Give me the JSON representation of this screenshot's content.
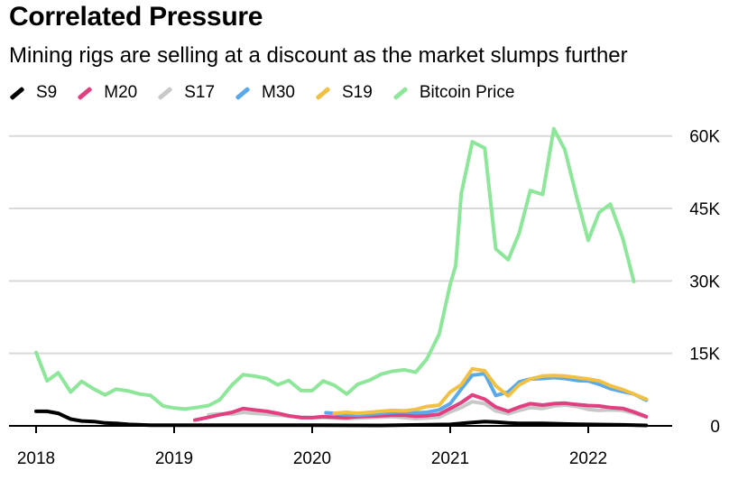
{
  "title": "Correlated Pressure",
  "subtitle": "Mining rigs are selling at a discount as the market slumps further",
  "legend": [
    {
      "label": "S9",
      "color": "#000000",
      "icon": "line-swatch"
    },
    {
      "label": "M20",
      "color": "#e0407f",
      "icon": "line-swatch"
    },
    {
      "label": "S17",
      "color": "#c8c8c8",
      "icon": "line-swatch"
    },
    {
      "label": "M30",
      "color": "#5aa9ea",
      "icon": "line-swatch"
    },
    {
      "label": "S19",
      "color": "#f2c042",
      "icon": "line-swatch"
    },
    {
      "label": "Bitcoin Price",
      "color": "#8ee69a",
      "icon": "line-swatch"
    }
  ],
  "chart_data": {
    "type": "line",
    "title": "Correlated Pressure",
    "subtitle": "Mining rigs are selling at a discount as the market slumps further",
    "xlabel": "",
    "ylabel": "",
    "x_unit": "year (decimal)",
    "xlim": [
      2017.85,
      2022.6
    ],
    "ylim": [
      0,
      62000
    ],
    "x_ticks": [
      2018,
      2019,
      2020,
      2021,
      2022
    ],
    "x_tick_labels": [
      "2018",
      "2019",
      "2020",
      "2021",
      "2022"
    ],
    "y_ticks": [
      0,
      15000,
      30000,
      45000,
      60000
    ],
    "y_tick_labels": [
      "0",
      "15K",
      "30K",
      "45K",
      "60K"
    ],
    "y_axis_position": "right",
    "grid": "horizontal",
    "legend_position": "top-left",
    "series": [
      {
        "name": "Bitcoin Price",
        "color": "#8ee69a",
        "x": [
          2018.0,
          2018.08,
          2018.16,
          2018.25,
          2018.33,
          2018.42,
          2018.5,
          2018.58,
          2018.67,
          2018.75,
          2018.83,
          2018.92,
          2019.0,
          2019.08,
          2019.16,
          2019.25,
          2019.33,
          2019.42,
          2019.5,
          2019.58,
          2019.67,
          2019.75,
          2019.83,
          2019.92,
          2020.0,
          2020.08,
          2020.16,
          2020.25,
          2020.33,
          2020.42,
          2020.5,
          2020.58,
          2020.67,
          2020.75,
          2020.83,
          2020.92,
          2021.0,
          2021.04,
          2021.08,
          2021.16,
          2021.25,
          2021.33,
          2021.42,
          2021.5,
          2021.58,
          2021.67,
          2021.75,
          2021.83,
          2021.92,
          2022.0,
          2022.08,
          2022.16,
          2022.25,
          2022.33,
          2022.42
        ],
        "values": [
          15200,
          9300,
          11000,
          7000,
          9200,
          7600,
          6400,
          7600,
          7200,
          6600,
          6300,
          4100,
          3700,
          3500,
          3800,
          4200,
          5400,
          8500,
          10600,
          10300,
          9800,
          8500,
          9400,
          7300,
          7300,
          9300,
          8400,
          6600,
          8600,
          9500,
          10700,
          11300,
          11600,
          11100,
          13800,
          19000,
          29300,
          33200,
          48000,
          58800,
          57500,
          36600,
          34400,
          39900,
          48700,
          47900,
          61500,
          57200,
          46900,
          38400,
          44200,
          45900,
          38800,
          29900,
          null
        ]
      },
      {
        "name": "S9",
        "color": "#000000",
        "x": [
          2018.0,
          2018.08,
          2018.16,
          2018.25,
          2018.33,
          2018.42,
          2018.5,
          2018.58,
          2018.67,
          2018.83,
          2019.0,
          2019.5,
          2020.0,
          2020.5,
          2021.0,
          2021.08,
          2021.16,
          2021.25,
          2021.33,
          2021.42,
          2021.5,
          2021.67,
          2021.83,
          2022.0,
          2022.25,
          2022.42
        ],
        "values": [
          3000,
          3000,
          2600,
          1400,
          1000,
          900,
          600,
          500,
          300,
          150,
          150,
          150,
          150,
          100,
          300,
          500,
          700,
          900,
          800,
          600,
          500,
          500,
          400,
          300,
          200,
          100
        ]
      },
      {
        "name": "M20",
        "color": "#e0407f",
        "x": [
          2019.15,
          2019.25,
          2019.33,
          2019.42,
          2019.5,
          2019.58,
          2019.67,
          2019.75,
          2019.83,
          2019.92,
          2020.0,
          2020.08,
          2020.16,
          2020.25,
          2020.33,
          2020.42,
          2020.5,
          2020.58,
          2020.67,
          2020.75,
          2020.83,
          2020.92,
          2021.0,
          2021.08,
          2021.16,
          2021.25,
          2021.33,
          2021.42,
          2021.5,
          2021.58,
          2021.67,
          2021.75,
          2021.83,
          2021.92,
          2022.0,
          2022.08,
          2022.16,
          2022.25,
          2022.33,
          2022.42
        ],
        "values": [
          1200,
          1800,
          2300,
          2800,
          3600,
          3300,
          3000,
          2600,
          2100,
          1700,
          1700,
          1900,
          1800,
          1700,
          1900,
          2000,
          2100,
          2200,
          2200,
          2000,
          2100,
          2400,
          3600,
          4800,
          6400,
          5500,
          3900,
          3000,
          3900,
          4600,
          4300,
          4600,
          4700,
          4400,
          4200,
          4100,
          3800,
          3600,
          2900,
          1900
        ]
      },
      {
        "name": "S17",
        "color": "#c8c8c8",
        "x": [
          2019.25,
          2019.33,
          2019.42,
          2019.5,
          2019.58,
          2019.67,
          2019.75,
          2019.83,
          2019.92,
          2020.0,
          2020.08,
          2020.16,
          2020.25,
          2020.33,
          2020.42,
          2020.5,
          2020.58,
          2020.67,
          2020.75,
          2020.83,
          2020.92,
          2021.0,
          2021.08,
          2021.16,
          2021.25,
          2021.33,
          2021.42,
          2021.5,
          2021.58,
          2021.67,
          2021.75,
          2021.83,
          2021.92,
          2022.0,
          2022.08,
          2022.16,
          2022.25,
          2022.33,
          2022.42
        ],
        "values": [
          2300,
          2500,
          2400,
          2800,
          2600,
          2400,
          2200,
          2000,
          1800,
          1700,
          1700,
          1600,
          1500,
          1600,
          1700,
          1800,
          1900,
          1700,
          1500,
          1600,
          1800,
          2900,
          3800,
          5000,
          4600,
          3100,
          2500,
          3200,
          3800,
          3600,
          4100,
          4300,
          4000,
          3400,
          3200,
          3300,
          3200,
          2600,
          1800
        ]
      },
      {
        "name": "M30",
        "color": "#5aa9ea",
        "x": [
          2020.1,
          2020.16,
          2020.25,
          2020.33,
          2020.42,
          2020.5,
          2020.58,
          2020.67,
          2020.75,
          2020.83,
          2020.92,
          2021.0,
          2021.08,
          2021.16,
          2021.25,
          2021.33,
          2021.42,
          2021.5,
          2021.58,
          2021.67,
          2021.75,
          2021.83,
          2021.92,
          2022.0,
          2022.08,
          2022.16,
          2022.25,
          2022.33,
          2022.42
        ],
        "values": [
          2700,
          2600,
          2300,
          2200,
          2400,
          2600,
          2800,
          2900,
          2700,
          2800,
          3300,
          4600,
          7600,
          10500,
          10800,
          6300,
          7000,
          9100,
          9700,
          9800,
          10000,
          9800,
          9400,
          9300,
          8600,
          7700,
          7100,
          6600,
          5300
        ]
      },
      {
        "name": "S19",
        "color": "#f2c042",
        "x": [
          2020.16,
          2020.25,
          2020.33,
          2020.42,
          2020.5,
          2020.58,
          2020.67,
          2020.75,
          2020.83,
          2020.92,
          2021.0,
          2021.08,
          2021.16,
          2021.25,
          2021.33,
          2021.42,
          2021.5,
          2021.58,
          2021.67,
          2021.75,
          2021.83,
          2021.92,
          2022.0,
          2022.08,
          2022.16,
          2022.25,
          2022.33,
          2022.42
        ],
        "values": [
          2600,
          2800,
          2600,
          2800,
          3000,
          3200,
          3100,
          3400,
          4000,
          4300,
          7000,
          8500,
          11800,
          11400,
          8300,
          6200,
          8500,
          9700,
          10300,
          10400,
          10300,
          10000,
          9700,
          9300,
          8300,
          7500,
          6600,
          5500
        ]
      }
    ]
  }
}
